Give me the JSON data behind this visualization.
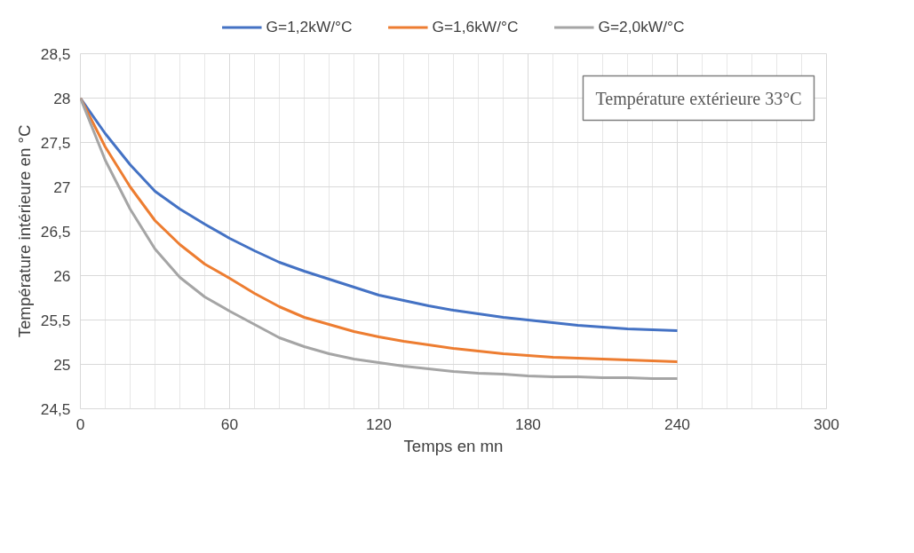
{
  "chart_data": {
    "type": "line",
    "xlabel": "Temps en mn",
    "ylabel": "Température intérieure en °C",
    "annotations": [
      "Température extérieure 33°C"
    ],
    "x": [
      0,
      10,
      20,
      30,
      40,
      50,
      60,
      70,
      80,
      90,
      100,
      110,
      120,
      130,
      140,
      150,
      160,
      170,
      180,
      190,
      200,
      210,
      220,
      230,
      240
    ],
    "series": [
      {
        "name": "G=1,2kW/°C",
        "color": "#4472c4",
        "values": [
          28,
          27.6,
          27.25,
          26.95,
          26.75,
          26.58,
          26.42,
          26.28,
          26.15,
          26.05,
          25.96,
          25.87,
          25.78,
          25.72,
          25.66,
          25.61,
          25.57,
          25.53,
          25.5,
          25.47,
          25.44,
          25.42,
          25.4,
          25.39,
          25.38
        ]
      },
      {
        "name": "G=1,6kW/°C",
        "color": "#ed7d31",
        "values": [
          28,
          27.45,
          27.0,
          26.62,
          26.35,
          26.13,
          25.97,
          25.8,
          25.65,
          25.53,
          25.45,
          25.37,
          25.31,
          25.26,
          25.22,
          25.18,
          25.15,
          25.12,
          25.1,
          25.08,
          25.07,
          25.06,
          25.05,
          25.04,
          25.03
        ]
      },
      {
        "name": "G=2,0kW/°C",
        "color": "#a5a5a5",
        "values": [
          28,
          27.3,
          26.75,
          26.3,
          25.98,
          25.76,
          25.6,
          25.45,
          25.3,
          25.2,
          25.12,
          25.06,
          25.02,
          24.98,
          24.95,
          24.92,
          24.9,
          24.89,
          24.87,
          24.86,
          24.86,
          24.85,
          24.85,
          24.84,
          24.84
        ]
      }
    ],
    "xlim": [
      0,
      300
    ],
    "xticks": [
      0,
      60,
      120,
      180,
      240,
      300
    ],
    "ylim": [
      24.5,
      28.5
    ],
    "yticks": [
      {
        "value": 24.5,
        "label": "24,5"
      },
      25,
      {
        "value": 25.5,
        "label": "25,5"
      },
      26,
      {
        "value": 26.5,
        "label": "26,5"
      },
      27,
      {
        "value": 27.5,
        "label": "27,5"
      },
      28,
      {
        "value": 28.5,
        "label": "28,5"
      }
    ],
    "grid": true,
    "legend": "top",
    "marker": "none",
    "line_style": "solid"
  }
}
